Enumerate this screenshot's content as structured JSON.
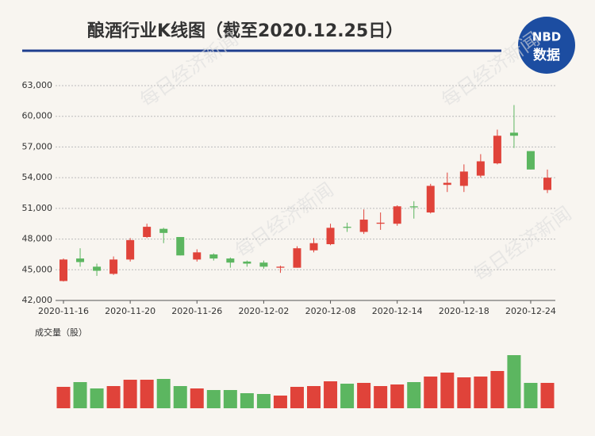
{
  "chart_data": {
    "type": "candlestick",
    "title": "酿酒行业K线图（截至2020.12.25日）",
    "logo": {
      "top": "NBD",
      "bottom": "数据"
    },
    "watermark": "每日经济新闻",
    "volume_label": "成交量（股）",
    "categories": [
      "2020-11-16",
      null,
      null,
      null,
      "2020-11-20",
      null,
      null,
      null,
      "2020-11-26",
      null,
      null,
      null,
      "2020-12-02",
      null,
      null,
      null,
      "2020-12-08",
      null,
      null,
      null,
      "2020-12-14",
      null,
      null,
      null,
      "2020-12-18",
      null,
      null,
      null,
      "2020-12-24",
      null
    ],
    "open": [
      43900,
      46100,
      45300,
      44600,
      46000,
      48200,
      49000,
      48200,
      46000,
      46500,
      46100,
      45800,
      45700,
      45200,
      45200,
      46900,
      47500,
      49200,
      48700,
      49500,
      49500,
      51200,
      50600,
      53300,
      53200,
      54200,
      55400,
      58400,
      56600,
      52800
    ],
    "high": [
      46100,
      47100,
      45600,
      46300,
      48100,
      49500,
      49100,
      48200,
      47000,
      46600,
      46200,
      45900,
      45900,
      45400,
      47300,
      48100,
      49500,
      49600,
      50900,
      50600,
      51300,
      51700,
      53400,
      54500,
      55300,
      56300,
      58700,
      61100,
      56600,
      54800
    ],
    "low": [
      43850,
      45300,
      44400,
      44500,
      45800,
      48100,
      47600,
      46400,
      45800,
      45900,
      45200,
      45300,
      45100,
      44700,
      45200,
      46700,
      47400,
      48700,
      48500,
      48900,
      49300,
      50000,
      50500,
      52600,
      52600,
      54000,
      55300,
      56900,
      54800,
      52500
    ],
    "close": [
      46000,
      45750,
      44900,
      46000,
      47900,
      49200,
      48600,
      46400,
      46700,
      46100,
      45700,
      45600,
      45300,
      45300,
      47100,
      47600,
      49100,
      49100,
      49900,
      49600,
      51200,
      51100,
      53200,
      53500,
      54600,
      55600,
      58100,
      58100,
      54800,
      54000
    ],
    "volume": [
      27,
      33,
      25,
      28,
      36,
      36,
      37,
      28,
      25,
      23,
      23,
      19,
      18,
      16,
      27,
      28,
      34,
      31,
      32,
      28,
      30,
      33,
      40,
      45,
      39,
      40,
      47,
      67,
      32,
      32
    ],
    "volume_lim": [
      0,
      70
    ],
    "up_color": "#e0433a",
    "down_color": "#5cb660",
    "ylim": [
      42000,
      63000
    ],
    "yticks": [
      {
        "value": 42000,
        "label": "42,000"
      },
      {
        "value": 45000,
        "label": "45,000"
      },
      {
        "value": 48000,
        "label": "48,000"
      },
      {
        "value": 51000,
        "label": "51,000"
      },
      {
        "value": 54000,
        "label": "54,000"
      },
      {
        "value": 57000,
        "label": "57,000"
      },
      {
        "value": 60000,
        "label": "60,000"
      },
      {
        "value": 63000,
        "label": "63,000"
      }
    ],
    "grid": true
  }
}
